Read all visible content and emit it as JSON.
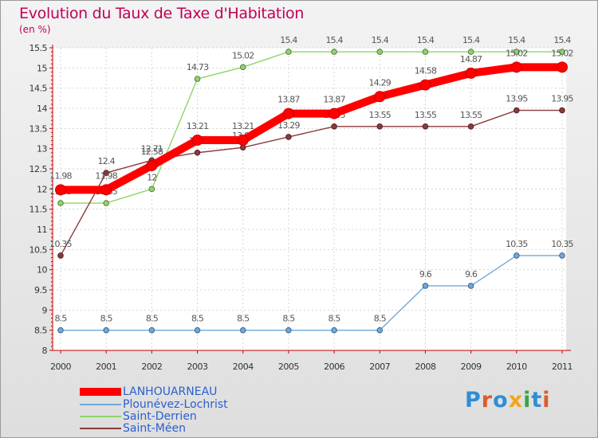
{
  "title": "Evolution du Taux de Taxe d'Habitation",
  "subtitle": "(en %)",
  "logo_text": "Proxiti",
  "logo_colors": [
    "#2e8ed6",
    "#e05a2b",
    "#2e8ed6",
    "#f2a51a",
    "#3aa24b",
    "#2e8ed6",
    "#e05a2b"
  ],
  "chart_data": {
    "type": "line",
    "x": [
      "2000",
      "2001",
      "2002",
      "2003",
      "2004",
      "2005",
      "2006",
      "2007",
      "2008",
      "2009",
      "2010",
      "2011"
    ],
    "ylim": [
      8,
      15.5
    ],
    "yticks": [
      8,
      8.5,
      9,
      9.5,
      10,
      10.5,
      11,
      11.5,
      12,
      12.5,
      13,
      13.5,
      14,
      14.5,
      15,
      15.5
    ],
    "ytick_labels": [
      "8",
      "8.5",
      "9",
      "9.5",
      "10",
      "10.5",
      "11",
      "11.5",
      "12",
      "12.5",
      "13",
      "13.5",
      "14",
      "14.5",
      "15",
      "15.5"
    ],
    "grid": true,
    "legend_position": "bottom-left",
    "series": [
      {
        "name": "LANHOUARNEAU",
        "color": "#ff0000",
        "emphasis": true,
        "values": [
          11.98,
          11.98,
          12.58,
          13.21,
          13.21,
          13.87,
          13.87,
          14.29,
          14.58,
          14.87,
          15.02,
          15.02
        ],
        "labels": [
          "11.98",
          "11.98",
          "12.58",
          "13.21",
          "13.21",
          "13.87",
          "13.87",
          "14.29",
          "14.58",
          "14.87",
          "15.02",
          "15.02"
        ]
      },
      {
        "name": "Plounévez-Lochrist",
        "color": "#6fa8dc",
        "emphasis": false,
        "values": [
          8.5,
          8.5,
          8.5,
          8.5,
          8.5,
          8.5,
          8.5,
          8.5,
          9.6,
          9.6,
          10.35,
          10.35
        ],
        "labels": [
          "8.5",
          "8.5",
          "8.5",
          "8.5",
          "8.5",
          "8.5",
          "8.5",
          "8.5",
          "9.6",
          "9.6",
          "10.35",
          "10.35"
        ]
      },
      {
        "name": "Saint-Derrien",
        "color": "#8fd46a",
        "emphasis": false,
        "values": [
          11.65,
          11.65,
          12,
          14.73,
          15.02,
          15.4,
          15.4,
          15.4,
          15.4,
          15.4,
          15.4,
          15.4
        ],
        "labels": [
          "11.65",
          "11.65",
          "12",
          "14.73",
          "15.02",
          "15.4",
          "15.4",
          "15.4",
          "15.4",
          "15.4",
          "15.4",
          "15.4"
        ]
      },
      {
        "name": "Saint-Méen",
        "color": "#8b3a3a",
        "emphasis": false,
        "values": [
          10.35,
          12.4,
          12.71,
          12.9,
          13.03,
          13.29,
          13.55,
          13.55,
          13.55,
          13.55,
          13.95,
          13.95
        ],
        "labels": [
          "10.35",
          "12.4",
          "12.71",
          "12.9",
          "13.03",
          "13.29",
          "13.55",
          "13.55",
          "13.55",
          "13.55",
          "13.95",
          "13.95"
        ]
      }
    ]
  }
}
